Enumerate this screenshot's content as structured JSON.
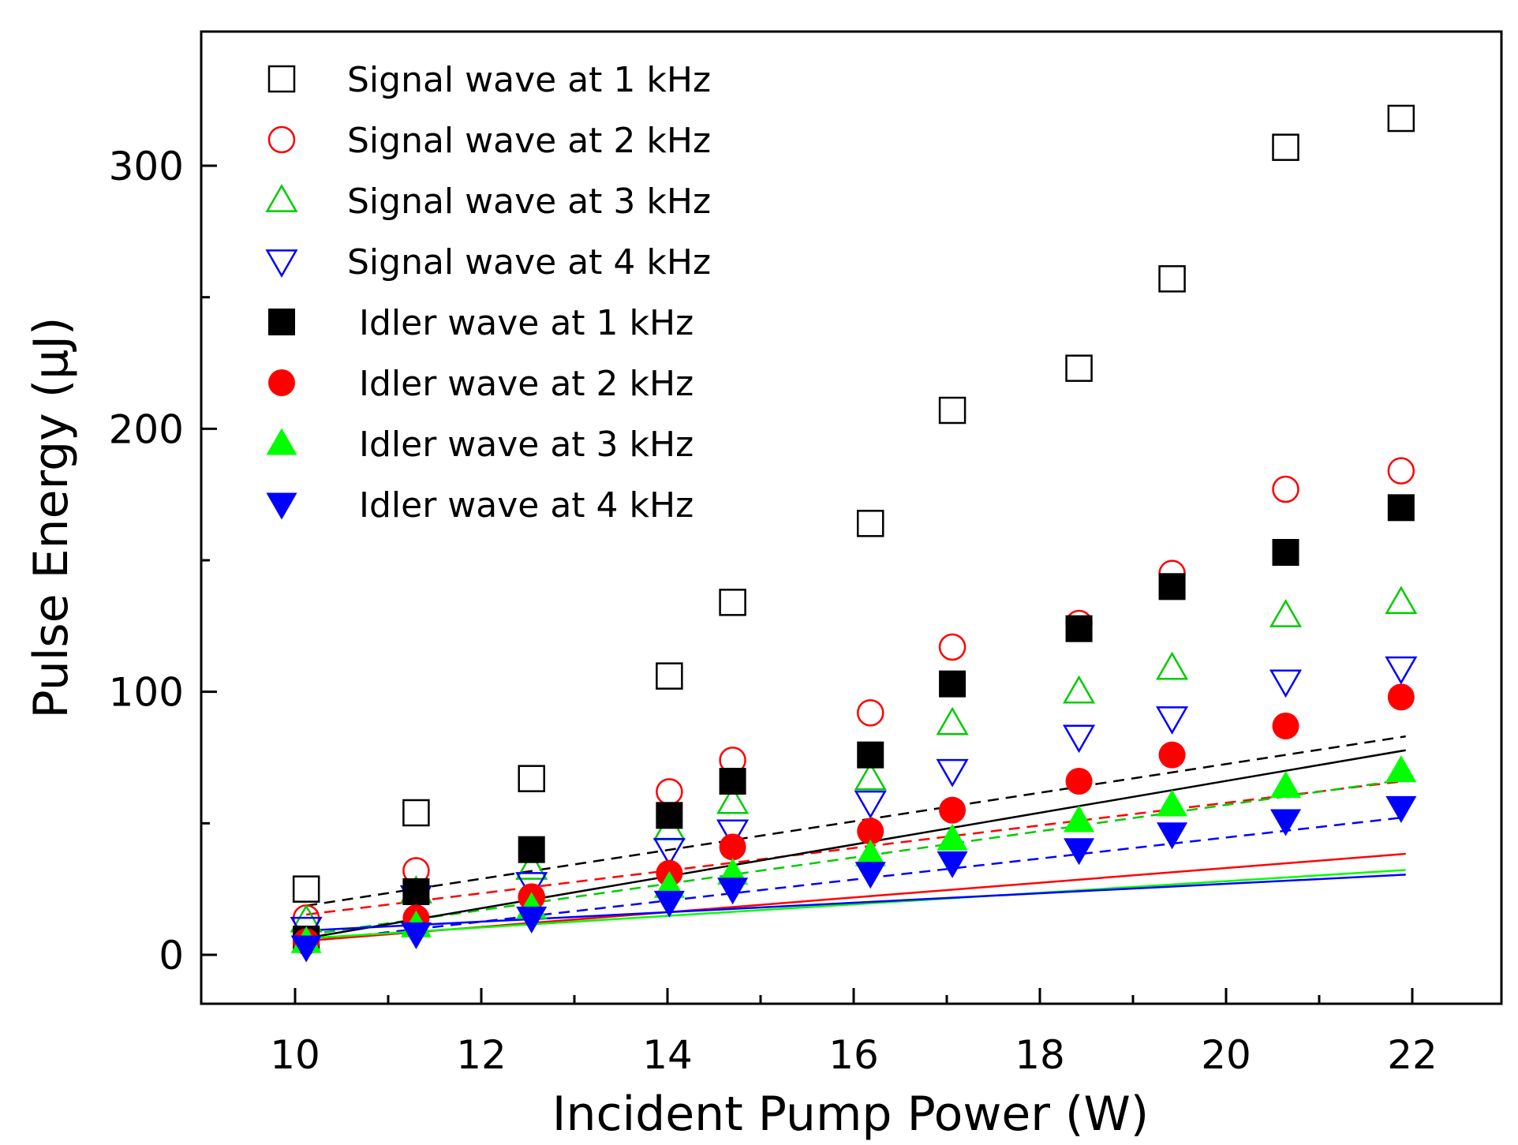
{
  "chart_data": {
    "type": "scatter",
    "title": "",
    "xlabel": "Incident Pump Power (W)",
    "ylabel": "Pulse Energy (μJ)",
    "xlim": [
      9,
      23
    ],
    "ylim": [
      -20,
      350
    ],
    "xticks": [
      10,
      12,
      14,
      16,
      18,
      20,
      22
    ],
    "yticks": [
      0,
      100,
      200,
      300
    ],
    "grid": false,
    "legend_position": "top-left",
    "x": [
      10.12,
      11.3,
      12.54,
      14.02,
      14.7,
      16.18,
      17.06,
      18.42,
      19.42,
      20.64,
      21.88
    ],
    "series": [
      {
        "name": "Signal wave at 1 kHz",
        "marker": "square",
        "filled": false,
        "color": "#000000",
        "fit_style": "dashed",
        "values": [
          25,
          54,
          67,
          106,
          134,
          164,
          207,
          223,
          257,
          307,
          318
        ],
        "fit": [
          5.45,
          18.03
        ]
      },
      {
        "name": "Signal wave at 2 kHz",
        "marker": "circle",
        "filled": false,
        "color": "#ff0000",
        "fit_style": "dashed",
        "values": [
          14,
          32,
          22,
          62,
          74,
          92,
          117,
          126,
          145,
          177,
          184
        ],
        "fit": [
          4.3,
          14.8
        ]
      },
      {
        "name": "Signal wave at 3 kHz",
        "marker": "triangle-up",
        "filled": false,
        "color": "#00cc00",
        "fit_style": "dashed",
        "values": [
          13,
          24,
          33,
          48,
          58,
          67,
          88,
          100,
          109,
          129,
          134
        ],
        "fit": [
          5.0,
          7.0
        ]
      },
      {
        "name": "Signal wave at 4 kHz",
        "marker": "triangle-down",
        "filled": false,
        "color": "#0000ff",
        "fit_style": "dashed",
        "values": [
          10,
          22,
          27,
          40,
          47,
          58,
          70,
          83,
          90,
          104,
          109
        ],
        "fit": [
          4.0,
          4.6
        ]
      },
      {
        "name": "Idler wave at 1 kHz",
        "marker": "square",
        "filled": true,
        "color": "#000000",
        "fit_style": "solid",
        "values": [
          6,
          24,
          40,
          53,
          66,
          76,
          103,
          124,
          140,
          153,
          170
        ],
        "fit": [
          6.05,
          5.61
        ]
      },
      {
        "name": "Idler wave at 2 kHz",
        "marker": "circle",
        "filled": true,
        "color": "#ff0000",
        "fit_style": "solid",
        "values": [
          5,
          14,
          22,
          31,
          41,
          47,
          55,
          66,
          76,
          87,
          98
        ],
        "fit": [
          2.8,
          5.0
        ]
      },
      {
        "name": "Idler wave at 3 kHz",
        "marker": "triangle-up",
        "filled": true,
        "color": "#00ff00",
        "fit_style": "solid",
        "values": [
          5,
          11,
          18,
          26,
          31,
          38,
          44,
          51,
          57,
          64,
          70
        ],
        "fit": [
          2.2,
          6.0
        ]
      },
      {
        "name": "Idler wave at 4 kHz",
        "marker": "triangle-down",
        "filled": true,
        "color": "#0000ff",
        "fit_style": "solid",
        "values": [
          3,
          8,
          14,
          20,
          25,
          31,
          35,
          40,
          46,
          51,
          56
        ],
        "fit": [
          1.8,
          9.0
        ]
      }
    ]
  }
}
